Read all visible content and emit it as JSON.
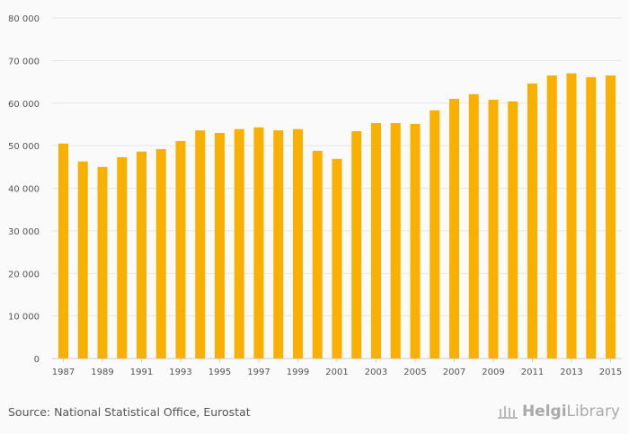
{
  "chart_data": {
    "type": "bar",
    "title": "",
    "xlabel": "",
    "ylabel": "",
    "ylim": [
      0,
      80000
    ],
    "yticks": [
      0,
      10000,
      20000,
      30000,
      40000,
      50000,
      60000,
      70000,
      80000
    ],
    "ytick_labels": [
      "0",
      "10 000",
      "20 000",
      "30 000",
      "40 000",
      "50 000",
      "60 000",
      "70 000",
      "80 000"
    ],
    "grid": true,
    "color": "#fab000",
    "categories": [
      "1987",
      "1988",
      "1989",
      "1990",
      "1991",
      "1992",
      "1993",
      "1994",
      "1995",
      "1996",
      "1997",
      "1998",
      "1999",
      "2000",
      "2001",
      "2002",
      "2003",
      "2004",
      "2005",
      "2006",
      "2007",
      "2008",
      "2009",
      "2010",
      "2011",
      "2012",
      "2013",
      "2014",
      "2015"
    ],
    "xtick_labels": [
      "1987",
      "1989",
      "1991",
      "1993",
      "1995",
      "1997",
      "1999",
      "2001",
      "2003",
      "2005",
      "2007",
      "2009",
      "2011",
      "2013",
      "2015"
    ],
    "values": [
      50500,
      46300,
      45000,
      47300,
      48600,
      49200,
      51100,
      53600,
      53000,
      53900,
      54300,
      53600,
      53900,
      48800,
      46900,
      53400,
      55300,
      55300,
      55100,
      58300,
      61000,
      62100,
      60800,
      60400,
      64600,
      66500,
      67000,
      66100,
      66500
    ]
  },
  "footer": {
    "source": "Source: National Statistical Office, Eurostat",
    "logo_text_bold": "Helgi",
    "logo_text": "Library"
  }
}
